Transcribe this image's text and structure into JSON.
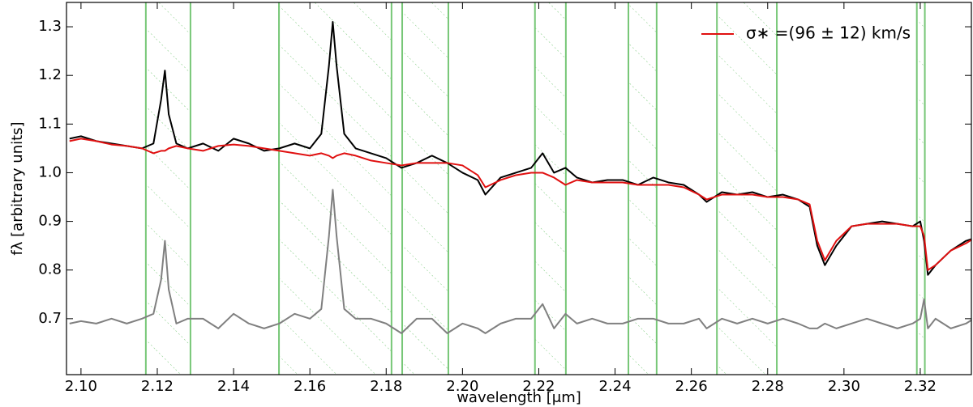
{
  "chart_data": {
    "type": "line",
    "xlabel": "wavelength [μm]",
    "ylabel": "fλ [arbitrary units]",
    "xlim": [
      2.0962,
      2.3334
    ],
    "ylim": [
      0.585,
      1.35
    ],
    "xticks": [
      {
        "value": 2.1,
        "label": "2.10"
      },
      {
        "value": 2.12,
        "label": "2.12"
      },
      {
        "value": 2.14,
        "label": "2.14"
      },
      {
        "value": 2.16,
        "label": "2.16"
      },
      {
        "value": 2.18,
        "label": "2.18"
      },
      {
        "value": 2.2,
        "label": "2.20"
      },
      {
        "value": 2.22,
        "label": "2.22"
      },
      {
        "value": 2.24,
        "label": "2.24"
      },
      {
        "value": 2.26,
        "label": "2.26"
      },
      {
        "value": 2.28,
        "label": "2.28"
      },
      {
        "value": 2.3,
        "label": "2.30"
      },
      {
        "value": 2.32,
        "label": "2.32"
      }
    ],
    "yticks": [
      0.7,
      0.8,
      0.9,
      {
        "value": 1.0,
        "label": "1.0"
      },
      1.1,
      1.2,
      1.3
    ],
    "legend": "upper right",
    "masked_regions": [
      [
        2.117,
        2.1287
      ],
      [
        2.1519,
        2.1814
      ],
      [
        2.1842,
        2.1963
      ],
      [
        2.219,
        2.2271
      ],
      [
        2.2435,
        2.2509
      ],
      [
        2.2667,
        2.2824
      ],
      [
        2.3191,
        2.3212
      ]
    ],
    "masked_color": "#77c777",
    "x": [
      2.097,
      2.1,
      2.104,
      2.108,
      2.112,
      2.116,
      2.119,
      2.121,
      2.122,
      2.123,
      2.125,
      2.128,
      2.132,
      2.136,
      2.14,
      2.144,
      2.148,
      2.152,
      2.156,
      2.16,
      2.163,
      2.165,
      2.166,
      2.167,
      2.169,
      2.172,
      2.176,
      2.18,
      2.184,
      2.188,
      2.192,
      2.196,
      2.2,
      2.204,
      2.206,
      2.21,
      2.214,
      2.218,
      2.221,
      2.224,
      2.227,
      2.23,
      2.234,
      2.238,
      2.242,
      2.246,
      2.25,
      2.254,
      2.258,
      2.262,
      2.264,
      2.268,
      2.272,
      2.276,
      2.28,
      2.284,
      2.288,
      2.291,
      2.293,
      2.295,
      2.298,
      2.302,
      2.306,
      2.31,
      2.314,
      2.318,
      2.32,
      2.321,
      2.322,
      2.324,
      2.328,
      2.332,
      2.334
    ],
    "series": [
      {
        "color": "#000000",
        "values": [
          1.07,
          1.075,
          1.065,
          1.06,
          1.055,
          1.05,
          1.06,
          1.15,
          1.21,
          1.12,
          1.06,
          1.05,
          1.06,
          1.045,
          1.07,
          1.06,
          1.045,
          1.05,
          1.06,
          1.05,
          1.08,
          1.22,
          1.31,
          1.22,
          1.08,
          1.05,
          1.04,
          1.03,
          1.01,
          1.02,
          1.035,
          1.02,
          1.0,
          0.985,
          0.955,
          0.99,
          1.0,
          1.01,
          1.04,
          1.0,
          1.01,
          0.99,
          0.98,
          0.985,
          0.985,
          0.975,
          0.99,
          0.98,
          0.975,
          0.955,
          0.94,
          0.96,
          0.955,
          0.96,
          0.95,
          0.955,
          0.945,
          0.93,
          0.85,
          0.81,
          0.85,
          0.89,
          0.895,
          0.9,
          0.895,
          0.89,
          0.9,
          0.86,
          0.79,
          0.81,
          0.84,
          0.86,
          0.865
        ]
      },
      {
        "name": "σ∗ =(96 ± 12) km/s",
        "color": "#e01010",
        "values": [
          1.065,
          1.07,
          1.065,
          1.058,
          1.055,
          1.05,
          1.04,
          1.045,
          1.045,
          1.05,
          1.055,
          1.05,
          1.045,
          1.055,
          1.058,
          1.055,
          1.05,
          1.045,
          1.04,
          1.035,
          1.04,
          1.035,
          1.03,
          1.035,
          1.04,
          1.035,
          1.025,
          1.02,
          1.015,
          1.02,
          1.02,
          1.02,
          1.015,
          0.995,
          0.97,
          0.985,
          0.995,
          1.0,
          1.0,
          0.99,
          0.975,
          0.985,
          0.98,
          0.98,
          0.98,
          0.975,
          0.975,
          0.975,
          0.97,
          0.955,
          0.945,
          0.955,
          0.955,
          0.955,
          0.95,
          0.95,
          0.945,
          0.935,
          0.86,
          0.82,
          0.86,
          0.89,
          0.895,
          0.895,
          0.895,
          0.89,
          0.89,
          0.87,
          0.8,
          0.81,
          0.84,
          0.855,
          0.865
        ]
      },
      {
        "color": "#808080",
        "values": [
          0.69,
          0.695,
          0.69,
          0.7,
          0.69,
          0.7,
          0.71,
          0.78,
          0.86,
          0.76,
          0.69,
          0.7,
          0.7,
          0.68,
          0.71,
          0.69,
          0.68,
          0.69,
          0.71,
          0.7,
          0.72,
          0.87,
          0.965,
          0.87,
          0.72,
          0.7,
          0.7,
          0.69,
          0.67,
          0.7,
          0.7,
          0.67,
          0.69,
          0.68,
          0.67,
          0.69,
          0.7,
          0.7,
          0.73,
          0.68,
          0.71,
          0.69,
          0.7,
          0.69,
          0.69,
          0.7,
          0.7,
          0.69,
          0.69,
          0.7,
          0.68,
          0.7,
          0.69,
          0.7,
          0.69,
          0.7,
          0.69,
          0.68,
          0.68,
          0.69,
          0.68,
          0.69,
          0.7,
          0.69,
          0.68,
          0.69,
          0.7,
          0.74,
          0.68,
          0.7,
          0.68,
          0.69,
          0.7
        ]
      }
    ]
  }
}
